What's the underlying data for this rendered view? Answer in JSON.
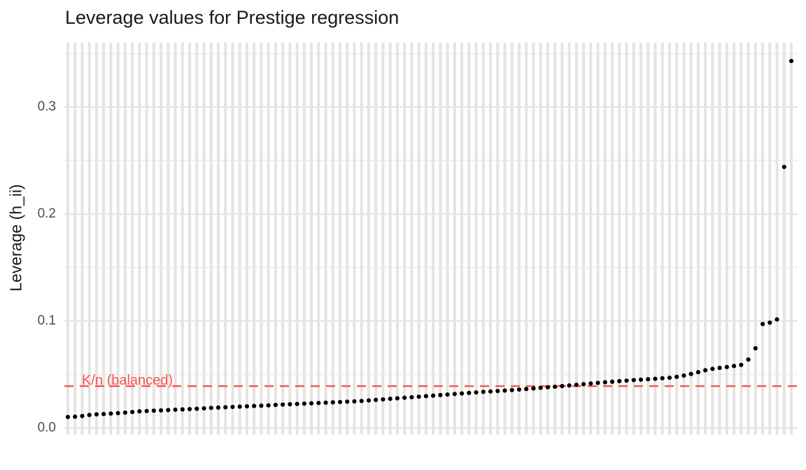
{
  "chart_data": {
    "type": "scatter",
    "title": "Leverage values for Prestige regression",
    "ylabel": "Leverage (h_ii)",
    "xlabel": "",
    "x_tick_labels_visible": false,
    "n_points": 102,
    "ylim": [
      0,
      0.36
    ],
    "y_ticks": [
      0,
      0.1,
      0.2,
      0.3
    ],
    "y_tick_labels": [
      "0.0",
      "0.1",
      "0.2",
      "0.3"
    ],
    "y_minor_gridlines": [
      0.05,
      0.15,
      0.25,
      0.35
    ],
    "grid": "on",
    "legend": "none",
    "point_color": "#000000",
    "gridline_color": "#E4E4E4",
    "minor_gridline_color": "#EAEAEA",
    "background_color": "#FFFFFF",
    "reference_line": {
      "value": 0.0392,
      "label": "K/n (balanced)",
      "color": "#F8544A",
      "style": "dashed"
    },
    "values": [
      0.0103,
      0.0106,
      0.0112,
      0.0122,
      0.0128,
      0.0131,
      0.0135,
      0.0139,
      0.0144,
      0.015,
      0.0156,
      0.0159,
      0.0162,
      0.0165,
      0.0168,
      0.0171,
      0.0174,
      0.0177,
      0.018,
      0.0184,
      0.0188,
      0.0191,
      0.0194,
      0.0197,
      0.02,
      0.0203,
      0.0206,
      0.0209,
      0.0212,
      0.0216,
      0.0219,
      0.0222,
      0.0225,
      0.0228,
      0.0231,
      0.0234,
      0.0237,
      0.024,
      0.0243,
      0.0246,
      0.0249,
      0.0253,
      0.0258,
      0.0263,
      0.0268,
      0.0273,
      0.0278,
      0.0283,
      0.0288,
      0.0293,
      0.0298,
      0.0303,
      0.0308,
      0.0313,
      0.0318,
      0.0323,
      0.0328,
      0.0333,
      0.0338,
      0.0342,
      0.0346,
      0.035,
      0.0355,
      0.036,
      0.0365,
      0.037,
      0.0376,
      0.0381,
      0.0386,
      0.0392,
      0.0398,
      0.0404,
      0.041,
      0.0416,
      0.0422,
      0.0428,
      0.0433,
      0.0438,
      0.0443,
      0.0448,
      0.0452,
      0.0456,
      0.046,
      0.0465,
      0.047,
      0.0478,
      0.049,
      0.0505,
      0.0522,
      0.054,
      0.0553,
      0.0562,
      0.057,
      0.058,
      0.059,
      0.064,
      0.0745,
      0.0972,
      0.0985,
      0.1015,
      0.244,
      0.343
    ]
  }
}
